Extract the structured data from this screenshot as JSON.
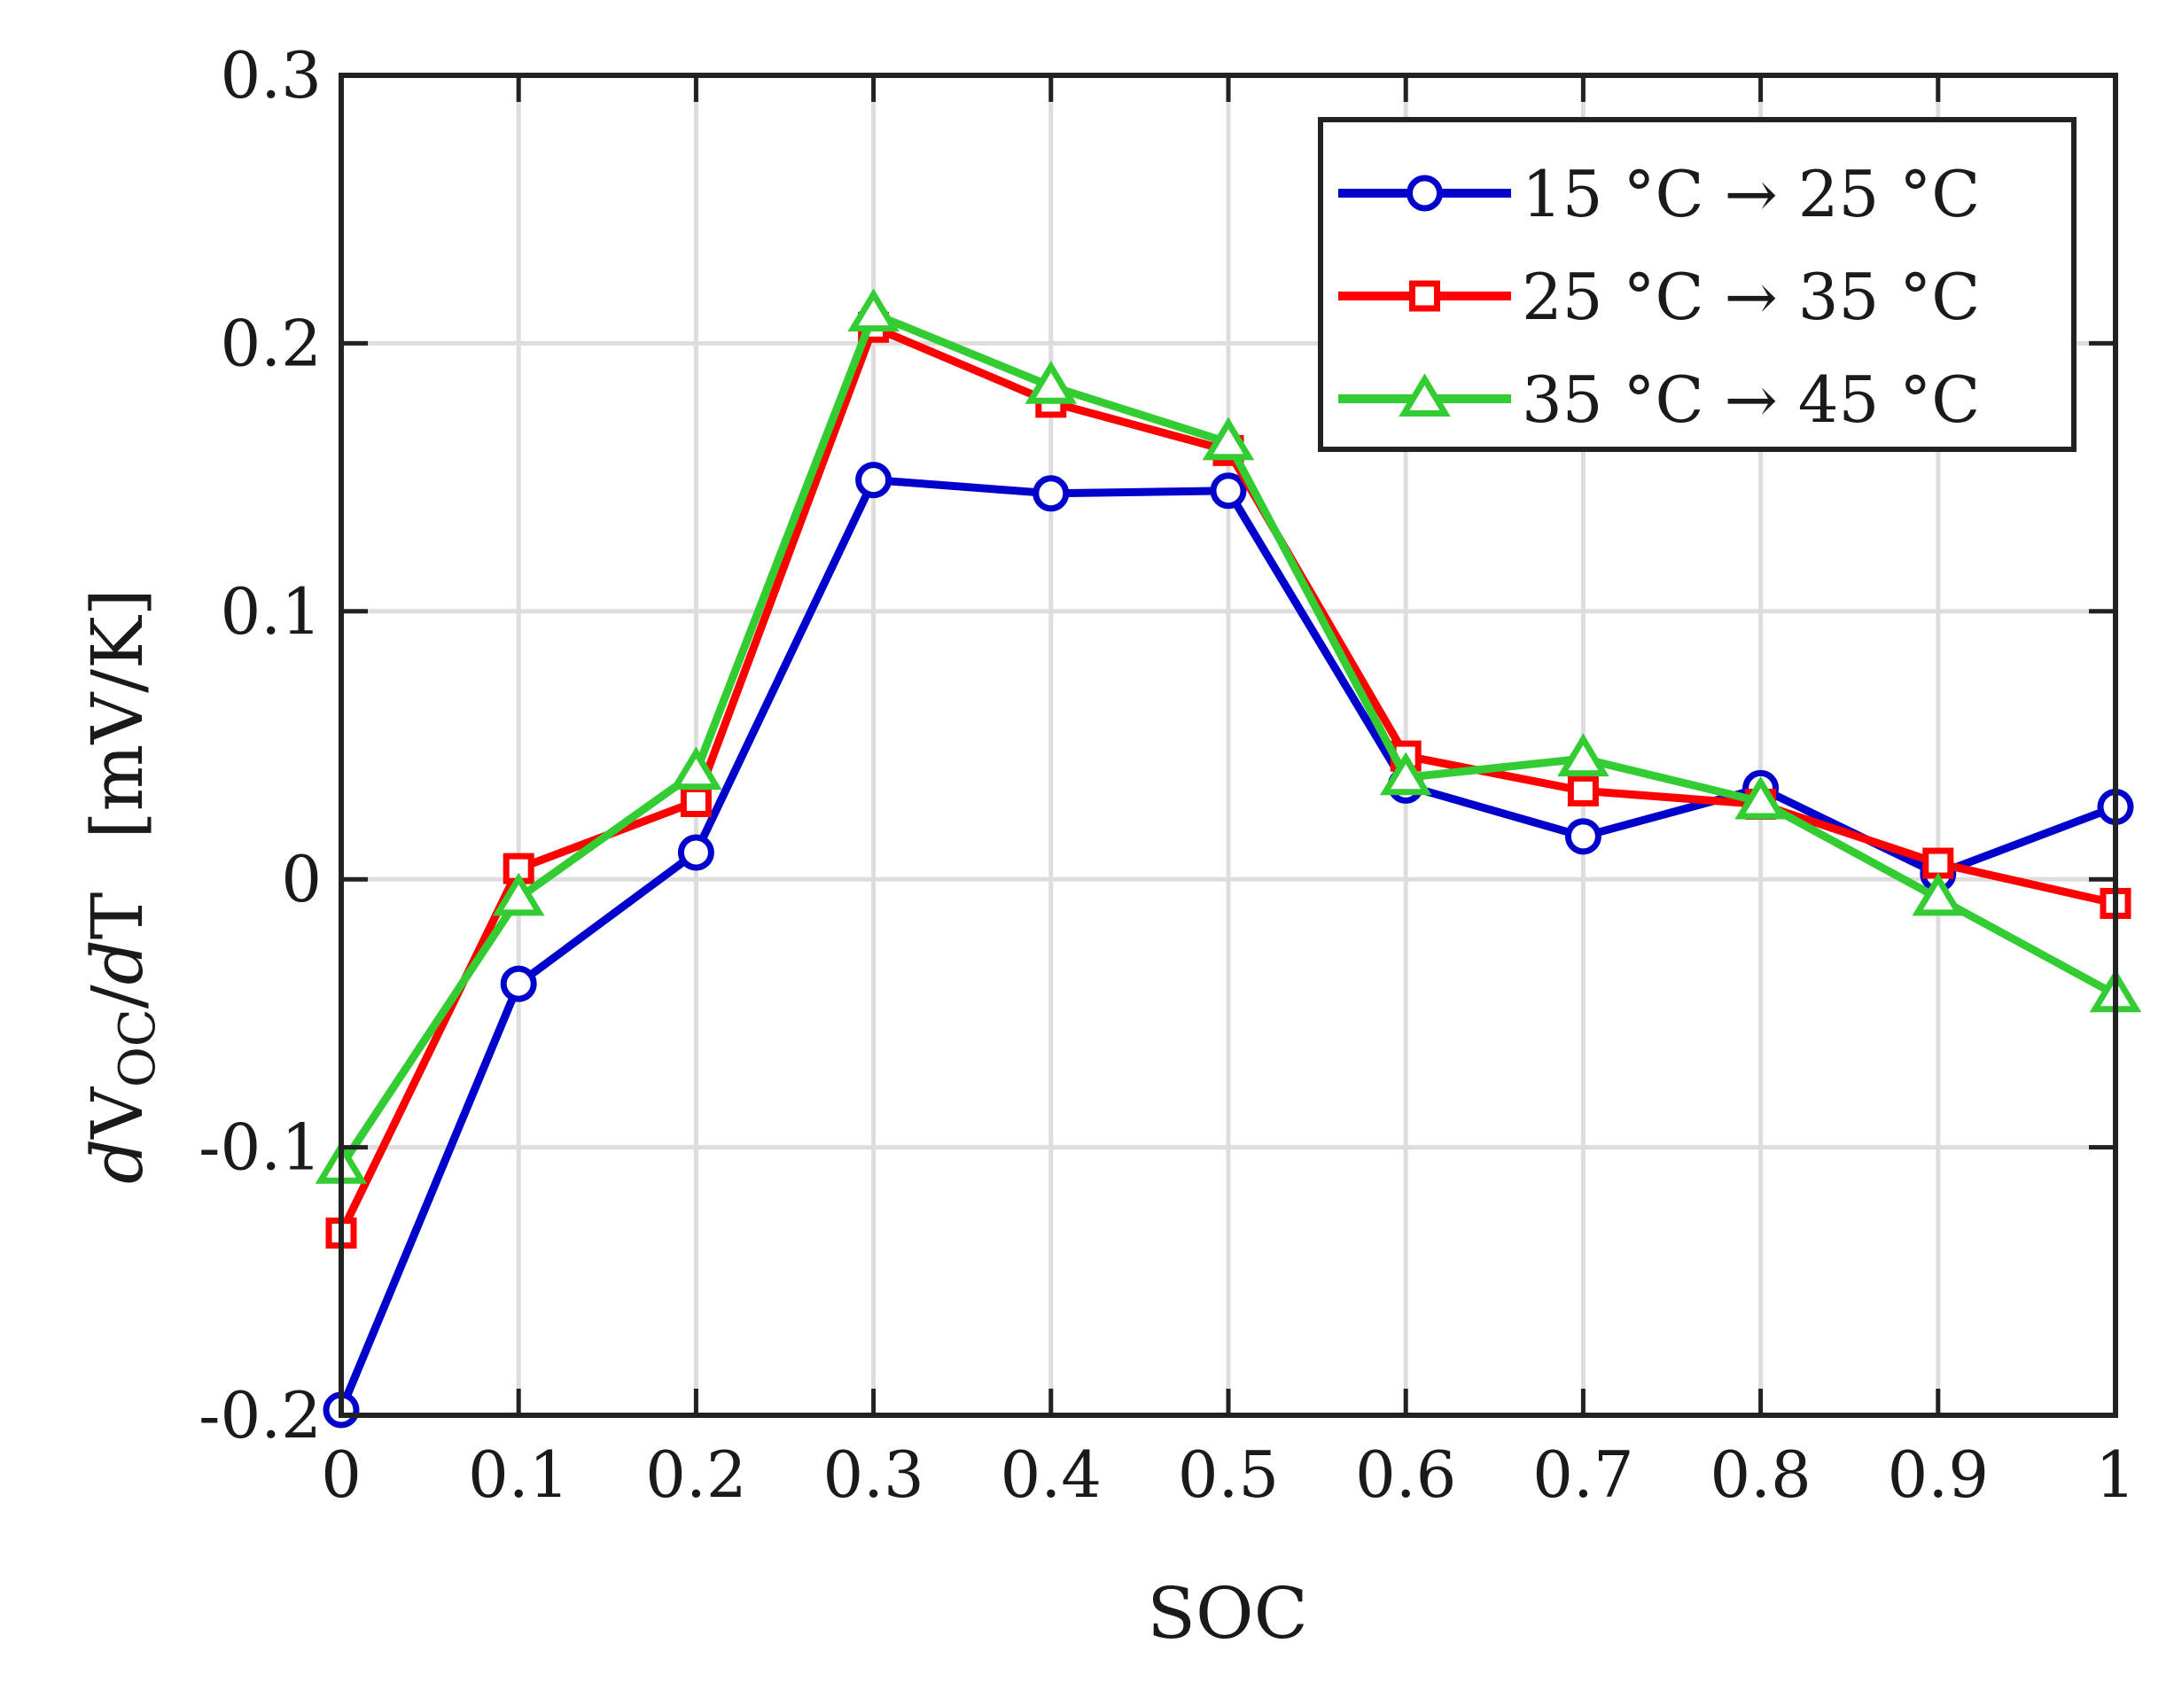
{
  "chart_data": {
    "type": "line",
    "xlabel": "SOC",
    "ylabel": {
      "d_prefix": "d",
      "var": "V",
      "sub": "OC",
      "slash": "/",
      "d2": "d",
      "t": "T",
      "unit": "[mV/K]"
    },
    "xlim": [
      0,
      1
    ],
    "ylim": [
      -0.2,
      0.3
    ],
    "xticks": [
      "0",
      "0.1",
      "0.2",
      "0.3",
      "0.4",
      "0.5",
      "0.6",
      "0.7",
      "0.8",
      "0.9",
      "1"
    ],
    "yticks": [
      "-0.2",
      "-0.1",
      "0",
      "0.1",
      "0.2",
      "0.3"
    ],
    "grid": true,
    "legend_position": "top-right",
    "x": [
      0,
      0.1,
      0.2,
      0.3,
      0.4,
      0.5,
      0.6,
      0.7,
      0.8,
      0.9,
      1.0
    ],
    "series": [
      {
        "name": "15 °C → 25 °C",
        "color": "#0000cc",
        "marker": "circle",
        "values": [
          -0.198,
          -0.039,
          0.01,
          0.149,
          0.144,
          0.145,
          0.035,
          0.016,
          0.034,
          0.002,
          0.027
        ]
      },
      {
        "name": "25 °C → 35 °C",
        "color": "#ff0000",
        "marker": "square",
        "values": [
          -0.132,
          0.004,
          0.029,
          0.206,
          0.178,
          0.16,
          0.046,
          0.033,
          0.028,
          0.006,
          -0.009
        ]
      },
      {
        "name": "35 °C → 45 °C",
        "color": "#33cc33",
        "marker": "triangle",
        "values": [
          -0.107,
          -0.007,
          0.04,
          0.211,
          0.184,
          0.163,
          0.038,
          0.045,
          0.029,
          -0.007,
          -0.043
        ]
      }
    ]
  }
}
